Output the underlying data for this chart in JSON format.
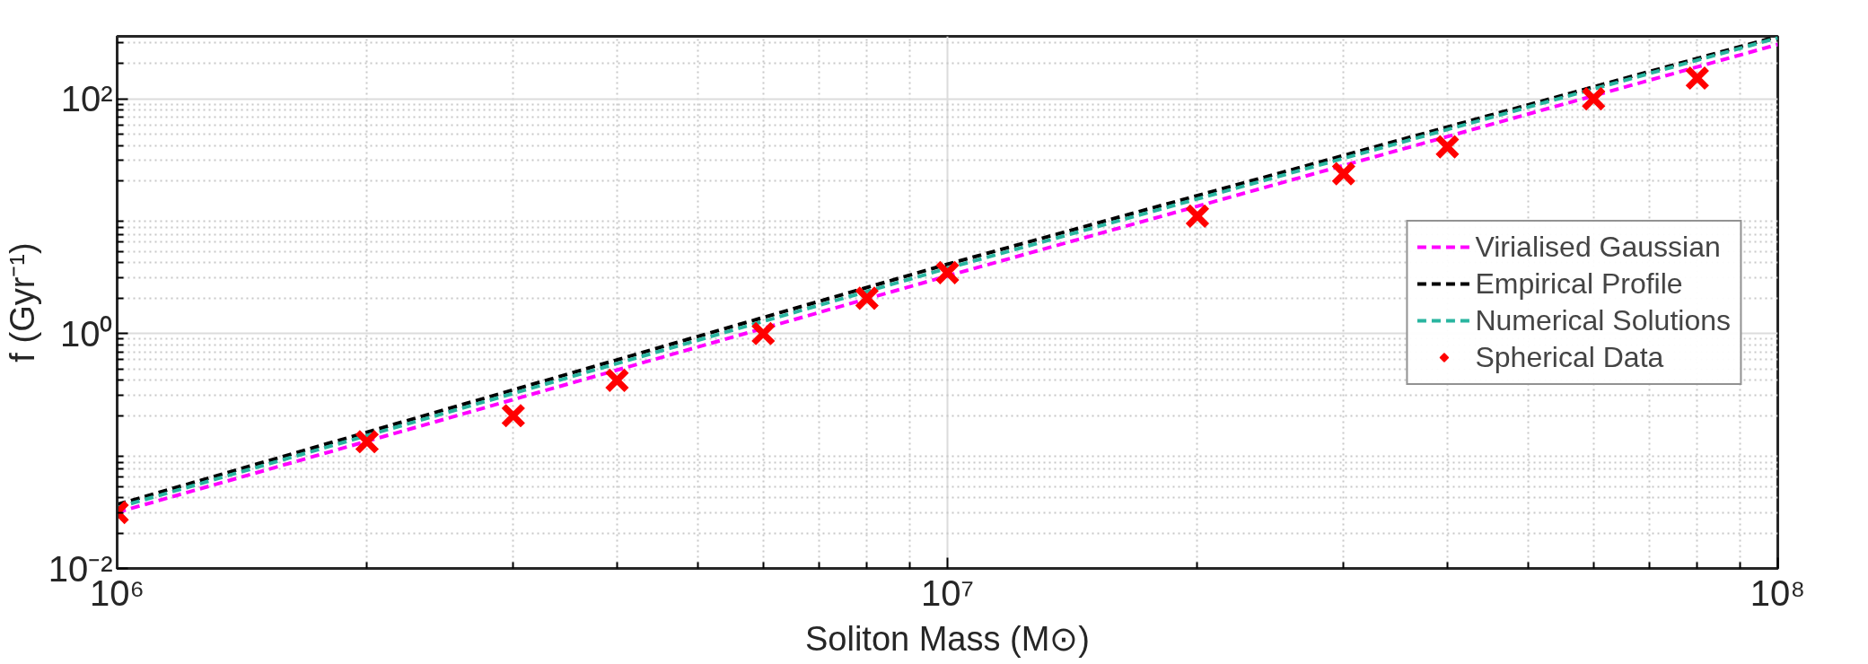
{
  "chart_data": {
    "type": "line",
    "xlabel": "Soliton Mass (M⊙)",
    "ylabel": "f (Gyr⁻¹)",
    "log": "xy",
    "xlim": [
      1000000,
      100000000
    ],
    "ylim": [
      0.01,
      340
    ],
    "xticks": [
      {
        "value": 1000000,
        "label": "10⁶"
      },
      {
        "value": 10000000,
        "label": "10⁷"
      },
      {
        "value": 100000000,
        "label": "10⁸"
      }
    ],
    "yticks": [
      {
        "value": 0.01,
        "label": "10⁻²"
      },
      {
        "value": 1,
        "label": "10⁰"
      },
      {
        "value": 100,
        "label": "10²"
      }
    ],
    "grid": true,
    "legend": "right",
    "series": [
      {
        "name": "Virialised Gaussian",
        "color": "#ff00ff",
        "line_style": "dashed",
        "x": [
          1000000,
          10000000,
          100000000
        ],
        "values": [
          0.03,
          3.1,
          290
        ]
      },
      {
        "name": "Empirical Profile",
        "color": "#000000",
        "line_style": "dashed",
        "x": [
          1000000,
          10000000,
          100000000
        ],
        "values": [
          0.035,
          3.9,
          340
        ]
      },
      {
        "name": "Numerical Solutions",
        "color": "#2ab5a0",
        "line_style": "dashed",
        "x": [
          1000000,
          10000000,
          100000000
        ],
        "values": [
          0.033,
          3.6,
          330
        ]
      },
      {
        "name": "Spherical Data",
        "color": "#ff0000",
        "type": "scatter",
        "marker": "cross",
        "x": [
          1000000,
          2000000,
          3000000,
          4000000,
          6000000,
          8000000,
          10000000,
          20000000,
          30000000,
          40000000,
          60000000,
          80000000
        ],
        "values": [
          0.03,
          0.12,
          0.2,
          0.4,
          1.0,
          2.0,
          3.3,
          10,
          23,
          39,
          100,
          150
        ]
      }
    ]
  }
}
